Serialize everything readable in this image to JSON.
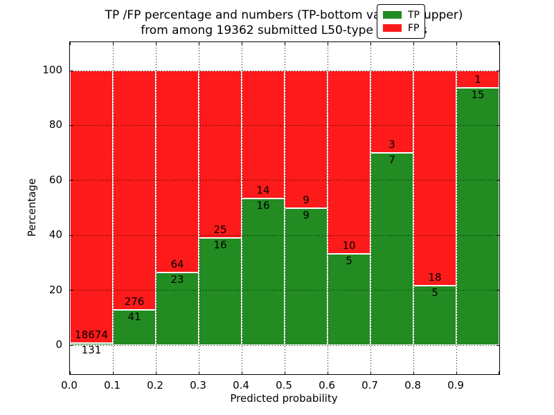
{
  "title": {
    "line1": "TP /FP percentage and numbers (TP-bottom value, FP-upper)",
    "line2": "from among 19362 submitted L50-type contacts"
  },
  "axes": {
    "xlabel": "Predicted probability",
    "ylabel": "Percentage",
    "x_tick_labels": [
      "0.0",
      "0.1",
      "0.2",
      "0.3",
      "0.4",
      "0.5",
      "0.6",
      "0.7",
      "0.8",
      "0.9"
    ],
    "y_tick_labels": [
      "0",
      "20",
      "40",
      "60",
      "80",
      "100"
    ]
  },
  "legend": {
    "items": [
      {
        "label": "TP",
        "color": "#228b22"
      },
      {
        "label": "FP",
        "color": "#fc1a1a"
      }
    ]
  },
  "chart_data": {
    "type": "bar",
    "stacked": true,
    "normalized_to_percent": true,
    "title": "TP /FP percentage and numbers (TP-bottom value, FP-upper) from among 19362 submitted L50-type contacts",
    "xlabel": "Predicted probability",
    "ylabel": "Percentage",
    "categories": [
      "0.0-0.1",
      "0.1-0.2",
      "0.2-0.3",
      "0.3-0.4",
      "0.4-0.5",
      "0.5-0.6",
      "0.6-0.7",
      "0.7-0.8",
      "0.8-0.9",
      "0.9-1.0"
    ],
    "series": [
      {
        "name": "TP",
        "color": "#228b22",
        "counts": [
          131,
          41,
          23,
          16,
          16,
          9,
          5,
          7,
          5,
          15
        ]
      },
      {
        "name": "FP",
        "color": "#fc1a1a",
        "counts": [
          18674,
          276,
          64,
          25,
          14,
          9,
          10,
          3,
          18,
          1
        ]
      }
    ],
    "tp_percent_of_bin": [
      0.7,
      12.9,
      26.4,
      39.0,
      53.3,
      50.0,
      33.3,
      70.0,
      21.7,
      93.8
    ],
    "total_contacts": 19362,
    "xlim": [
      0.0,
      1.0
    ],
    "ylim": [
      -11,
      110
    ],
    "x_tick_values": [
      0.0,
      0.1,
      0.2,
      0.3,
      0.4,
      0.5,
      0.6,
      0.7,
      0.8,
      0.9
    ],
    "y_tick_values": [
      0,
      20,
      40,
      60,
      80,
      100
    ],
    "grid": "dotted",
    "legend_position": "upper right"
  }
}
